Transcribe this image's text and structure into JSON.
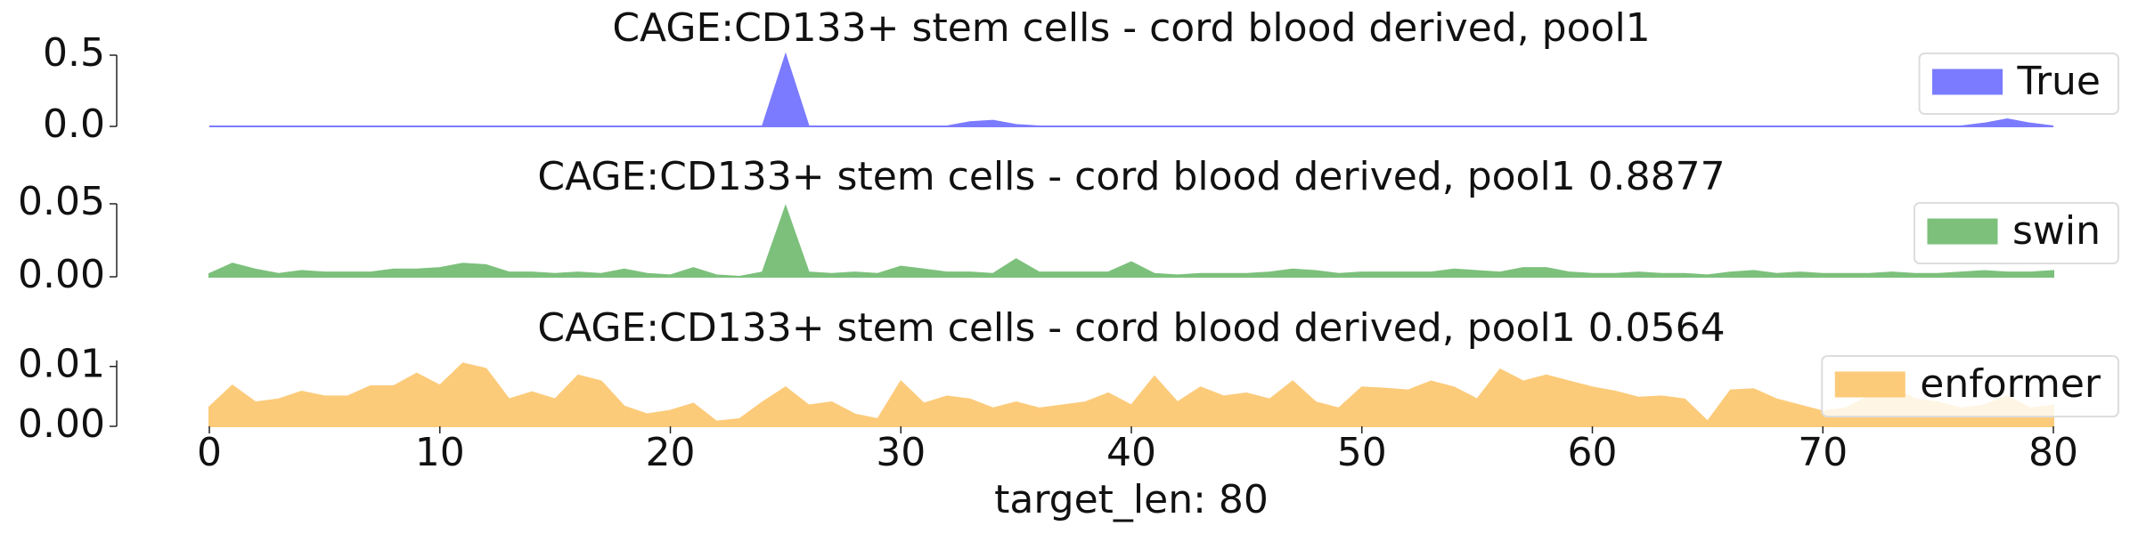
{
  "chart_data": [
    {
      "type": "area",
      "title": "CAGE:CD133+ stem cells - cord blood derived, pool1",
      "x": [
        0,
        1,
        2,
        3,
        4,
        5,
        6,
        7,
        8,
        9,
        10,
        11,
        12,
        13,
        14,
        15,
        16,
        17,
        18,
        19,
        20,
        21,
        22,
        23,
        24,
        25,
        26,
        27,
        28,
        29,
        30,
        31,
        32,
        33,
        34,
        35,
        36,
        37,
        38,
        39,
        40,
        41,
        42,
        43,
        44,
        45,
        46,
        47,
        48,
        49,
        50,
        51,
        52,
        53,
        54,
        55,
        56,
        57,
        58,
        59,
        60,
        61,
        62,
        63,
        64,
        65,
        66,
        67,
        68,
        69,
        70,
        71,
        72,
        73,
        74,
        75,
        76,
        77,
        78,
        79,
        80
      ],
      "series": [
        {
          "name": "True",
          "color": "#7b7bff",
          "values": [
            0,
            0,
            0,
            0,
            0,
            0,
            0,
            0,
            0,
            0,
            0,
            0,
            0,
            0,
            0,
            0,
            0,
            0,
            0,
            0,
            0,
            0,
            0,
            0,
            0,
            0.5,
            0,
            0,
            0,
            0,
            0,
            0,
            0,
            0.03,
            0.04,
            0.01,
            0,
            0,
            0,
            0,
            0,
            0,
            0,
            0,
            0,
            0,
            0,
            0,
            0,
            0,
            0,
            0,
            0,
            0,
            0,
            0,
            0,
            0,
            0,
            0,
            0,
            0,
            0,
            0,
            0,
            0,
            0,
            0,
            0,
            0,
            0,
            0,
            0,
            0,
            0,
            0,
            0,
            0.02,
            0.05,
            0.02,
            0
          ]
        }
      ],
      "xlim": [
        0,
        80
      ],
      "ylim": [
        0,
        0.5
      ],
      "yticks": [
        {
          "value": 0,
          "label": "0.0"
        },
        0.5
      ],
      "legend": "right"
    },
    {
      "type": "area",
      "title": "CAGE:CD133+ stem cells - cord blood derived, pool1 0.8877",
      "x": [
        0,
        1,
        2,
        3,
        4,
        5,
        6,
        7,
        8,
        9,
        10,
        11,
        12,
        13,
        14,
        15,
        16,
        17,
        18,
        19,
        20,
        21,
        22,
        23,
        24,
        25,
        26,
        27,
        28,
        29,
        30,
        31,
        32,
        33,
        34,
        35,
        36,
        37,
        38,
        39,
        40,
        41,
        42,
        43,
        44,
        45,
        46,
        47,
        48,
        49,
        50,
        51,
        52,
        53,
        54,
        55,
        56,
        57,
        58,
        59,
        60,
        61,
        62,
        63,
        64,
        65,
        66,
        67,
        68,
        69,
        70,
        71,
        72,
        73,
        74,
        75,
        76,
        77,
        78,
        79,
        80
      ],
      "series": [
        {
          "name": "swin",
          "color": "#7cc07c",
          "values": [
            0.002,
            0.009,
            0.005,
            0.002,
            0.004,
            0.003,
            0.003,
            0.003,
            0.005,
            0.005,
            0.006,
            0.009,
            0.008,
            0.003,
            0.003,
            0.002,
            0.003,
            0.002,
            0.005,
            0.002,
            0.001,
            0.006,
            0.001,
            0,
            0.003,
            0.048,
            0.003,
            0.002,
            0.003,
            0.002,
            0.007,
            0.005,
            0.003,
            0.003,
            0.002,
            0.012,
            0.003,
            0.003,
            0.003,
            0.003,
            0.01,
            0.002,
            0.001,
            0.002,
            0.002,
            0.002,
            0.003,
            0.005,
            0.004,
            0.002,
            0.003,
            0.003,
            0.003,
            0.003,
            0.005,
            0.004,
            0.003,
            0.006,
            0.006,
            0.003,
            0.002,
            0.002,
            0.003,
            0.002,
            0.002,
            0.001,
            0.003,
            0.004,
            0.002,
            0.003,
            0.002,
            0.002,
            0.002,
            0.003,
            0.002,
            0.002,
            0.003,
            0.004,
            0.003,
            0.003,
            0.004
          ]
        }
      ],
      "xlim": [
        0,
        80
      ],
      "ylim": [
        0,
        0.05
      ],
      "yticks": [
        {
          "value": 0,
          "label": "0.00"
        },
        {
          "value": 0.05,
          "label": "0.05"
        }
      ],
      "legend": "right"
    },
    {
      "type": "area",
      "title": "CAGE:CD133+ stem cells - cord blood derived, pool1 0.0564",
      "x": [
        0,
        1,
        2,
        3,
        4,
        5,
        6,
        7,
        8,
        9,
        10,
        11,
        12,
        13,
        14,
        15,
        16,
        17,
        18,
        19,
        20,
        21,
        22,
        23,
        24,
        25,
        26,
        27,
        28,
        29,
        30,
        31,
        32,
        33,
        34,
        35,
        36,
        37,
        38,
        39,
        40,
        41,
        42,
        43,
        44,
        45,
        46,
        47,
        48,
        49,
        50,
        51,
        52,
        53,
        54,
        55,
        56,
        57,
        58,
        59,
        60,
        61,
        62,
        63,
        64,
        65,
        66,
        67,
        68,
        69,
        70,
        71,
        72,
        73,
        74,
        75,
        76,
        77,
        78,
        79,
        80
      ],
      "series": [
        {
          "name": "enformer",
          "color": "#fccb7a",
          "values": [
            0.0032,
            0.0068,
            0.004,
            0.0045,
            0.0058,
            0.005,
            0.005,
            0.0067,
            0.0067,
            0.0088,
            0.0068,
            0.0105,
            0.0096,
            0.0045,
            0.0057,
            0.0045,
            0.0085,
            0.0075,
            0.0033,
            0.002,
            0.0026,
            0.0038,
            0.0008,
            0.0012,
            0.004,
            0.0065,
            0.0035,
            0.004,
            0.002,
            0.0012,
            0.0075,
            0.0038,
            0.005,
            0.0045,
            0.003,
            0.004,
            0.003,
            0.0035,
            0.004,
            0.0055,
            0.0035,
            0.0083,
            0.004,
            0.0065,
            0.005,
            0.0055,
            0.0045,
            0.0075,
            0.004,
            0.003,
            0.0065,
            0.0063,
            0.006,
            0.0075,
            0.0065,
            0.0045,
            0.0095,
            0.0075,
            0.0085,
            0.0075,
            0.0065,
            0.0058,
            0.0048,
            0.005,
            0.0045,
            0.0008,
            0.006,
            0.0062,
            0.0045,
            0.0035,
            0.0025,
            0.003,
            0.005,
            0.0065,
            0.0045,
            0.004,
            0.003,
            0.0035,
            0.005,
            0.003,
            0.0035
          ]
        }
      ],
      "xlim": [
        0,
        80
      ],
      "ylim": [
        0,
        0.011
      ],
      "yticks": [
        {
          "value": 0,
          "label": "0.00"
        },
        {
          "value": 0.01,
          "label": "0.01"
        }
      ],
      "xticks": [
        0,
        10,
        20,
        30,
        40,
        50,
        60,
        70,
        80
      ],
      "xlabel": "target_len: 80",
      "legend": "right"
    }
  ]
}
